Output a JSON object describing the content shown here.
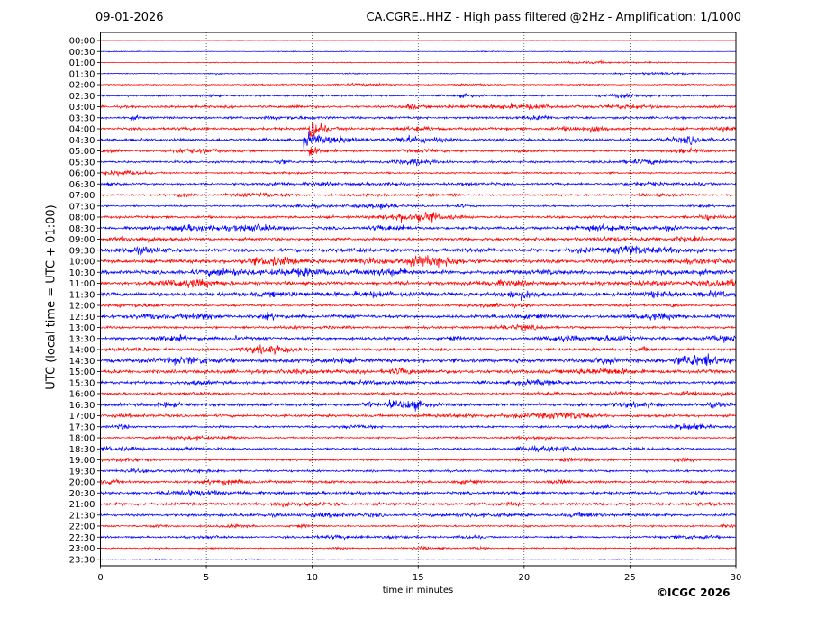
{
  "header": {
    "date": "09-01-2026",
    "title": "CA.CGRE..HHZ - High pass filtered @2Hz - Amplification: 1/1000"
  },
  "footer": {
    "copyright": "©ICGC 2026"
  },
  "chart_data": {
    "type": "line",
    "title": "CA.CGRE..HHZ - High pass filtered @2Hz - Amplification: 1/1000",
    "xlabel": "time in minutes",
    "ylabel": "UTC (local time = UTC + 01:00)",
    "xlim": [
      0,
      30
    ],
    "x_ticks": [
      0,
      5,
      10,
      15,
      20,
      25,
      30
    ],
    "grid": "vertical dotted at x ticks",
    "colors": {
      "red": "#ff0000",
      "blue": "#0000ff"
    },
    "color_pattern": "per trace: red if index mod 4 is 0 or 2, blue if 1 or 3",
    "rows": [
      "00:00",
      "00:30",
      "01:00",
      "01:30",
      "02:00",
      "02:30",
      "03:00",
      "03:30",
      "04:00",
      "04:30",
      "05:00",
      "05:30",
      "06:00",
      "06:30",
      "07:00",
      "07:30",
      "08:00",
      "08:30",
      "09:00",
      "09:30",
      "10:00",
      "10:30",
      "11:00",
      "11:30",
      "12:00",
      "12:30",
      "13:00",
      "13:30",
      "14:00",
      "14:30",
      "15:00",
      "15:30",
      "16:00",
      "16:30",
      "17:00",
      "17:30",
      "18:00",
      "18:30",
      "19:00",
      "19:30",
      "20:00",
      "20:30",
      "21:00",
      "21:30",
      "22:00",
      "22:30",
      "23:00",
      "23:30"
    ],
    "noise_amplitude": [
      0.05,
      0.15,
      0.3,
      0.3,
      0.35,
      0.6,
      0.8,
      0.75,
      0.85,
      0.9,
      0.7,
      0.7,
      0.55,
      0.65,
      0.6,
      0.55,
      0.8,
      0.95,
      0.95,
      1.1,
      1.25,
      1.25,
      1.15,
      1.3,
      0.7,
      1.0,
      0.75,
      0.9,
      0.9,
      1.3,
      1.15,
      0.95,
      0.65,
      1.0,
      0.85,
      0.7,
      0.55,
      0.7,
      0.6,
      0.7,
      0.75,
      0.9,
      0.9,
      0.8,
      0.55,
      0.6,
      0.45,
      0.15
    ],
    "events": [
      {
        "row": "04:00",
        "minute": 9.9,
        "peak_amplitude": 10,
        "duration_minutes": 0.8,
        "note": "main arrival"
      },
      {
        "row": "04:30",
        "minute": 9.6,
        "peak_amplitude": 5,
        "duration_minutes": 1.8,
        "note": "coda"
      },
      {
        "row": "05:00",
        "minute": 9.9,
        "peak_amplitude": 5,
        "duration_minutes": 0.4
      },
      {
        "row": "13:30",
        "minute": 6.4,
        "peak_amplitude": 1.6,
        "duration_minutes": 0.2
      },
      {
        "row": "16:30",
        "minute": 13.7,
        "peak_amplitude": 1.5,
        "duration_minutes": 0.2
      },
      {
        "row": "14:30",
        "minute": 19.6,
        "peak_amplitude": 1.4,
        "duration_minutes": 0.3
      }
    ]
  }
}
